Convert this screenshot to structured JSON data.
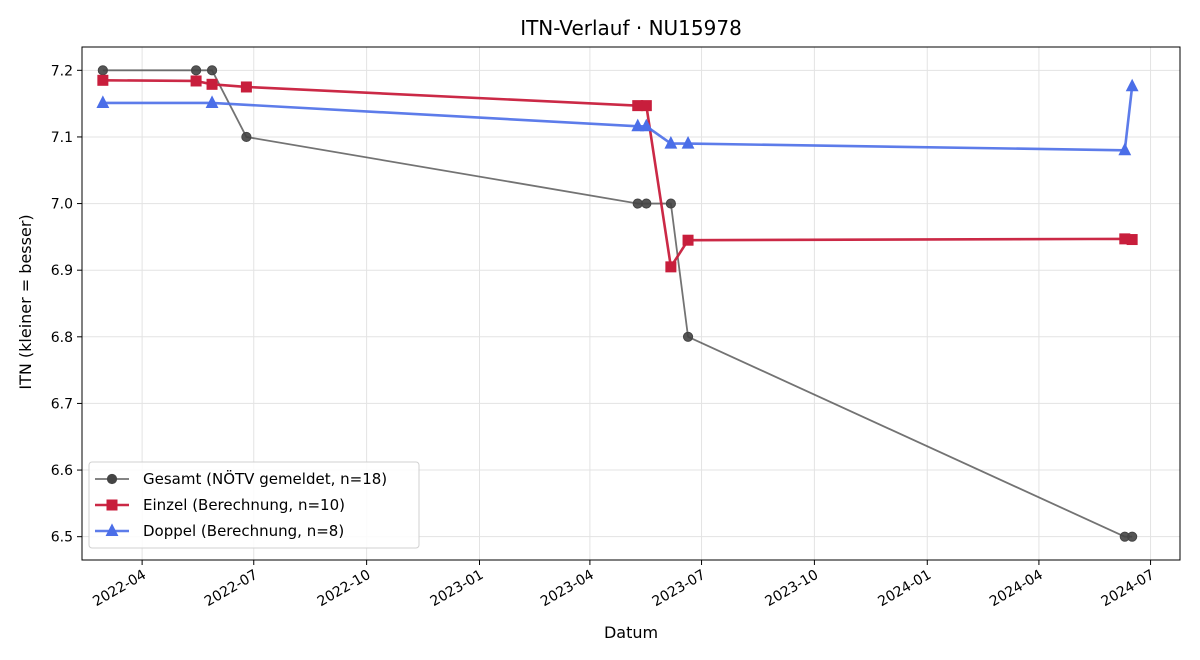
{
  "chart_data": {
    "type": "line",
    "title": "ITN-Verlauf · NU15978",
    "xlabel": "Datum",
    "ylabel": "ITN  (kleiner = besser)",
    "xlim": [
      "2022-02-11",
      "2024-07-25"
    ],
    "ylim": [
      6.465,
      7.235
    ],
    "x_ticks": [
      "2022-04-01",
      "2022-07-01",
      "2022-10-01",
      "2023-01-01",
      "2023-04-01",
      "2023-07-01",
      "2023-10-01",
      "2024-01-01",
      "2024-04-01",
      "2024-07-01"
    ],
    "x_tick_labels": [
      "2022-04",
      "2022-07",
      "2022-10",
      "2023-01",
      "2023-04",
      "2023-07",
      "2023-10",
      "2024-01",
      "2024-04",
      "2024-07"
    ],
    "y_ticks": [
      6.5,
      6.6,
      6.7,
      6.8,
      6.9,
      7.0,
      7.1,
      7.2
    ],
    "y_tick_labels": [
      "6.5",
      "6.6",
      "6.7",
      "6.8",
      "6.9",
      "7.0",
      "7.1",
      "7.2"
    ],
    "grid": true,
    "legend_position": "lower-left",
    "series": [
      {
        "name": "Gesamt (NÖTV gemeldet, n=18)",
        "color": "#444444",
        "marker": "circle",
        "points": [
          {
            "x": "2022-02-28",
            "y": 7.2
          },
          {
            "x": "2022-05-15",
            "y": 7.2
          },
          {
            "x": "2022-05-28",
            "y": 7.2
          },
          {
            "x": "2022-06-25",
            "y": 7.1
          },
          {
            "x": "2023-05-10",
            "y": 7.0
          },
          {
            "x": "2023-05-17",
            "y": 7.0
          },
          {
            "x": "2023-06-06",
            "y": 7.0
          },
          {
            "x": "2023-06-20",
            "y": 6.8
          },
          {
            "x": "2024-06-10",
            "y": 6.5
          },
          {
            "x": "2024-06-16",
            "y": 6.5
          }
        ]
      },
      {
        "name": "Einzel (Berechnung, n=10)",
        "color": "#c81e3c",
        "marker": "square",
        "points": [
          {
            "x": "2022-02-28",
            "y": 7.185
          },
          {
            "x": "2022-05-15",
            "y": 7.184
          },
          {
            "x": "2022-05-28",
            "y": 7.179
          },
          {
            "x": "2022-06-25",
            "y": 7.175
          },
          {
            "x": "2023-05-10",
            "y": 7.147
          },
          {
            "x": "2023-05-17",
            "y": 7.147
          },
          {
            "x": "2023-06-06",
            "y": 6.905
          },
          {
            "x": "2023-06-20",
            "y": 6.945
          },
          {
            "x": "2024-06-10",
            "y": 6.947
          },
          {
            "x": "2024-06-16",
            "y": 6.946
          }
        ]
      },
      {
        "name": "Doppel (Berechnung, n=8)",
        "color": "#4b6ee8",
        "marker": "triangle",
        "points": [
          {
            "x": "2022-02-28",
            "y": 7.151
          },
          {
            "x": "2022-05-28",
            "y": 7.151
          },
          {
            "x": "2023-05-10",
            "y": 7.116
          },
          {
            "x": "2023-05-17",
            "y": 7.116
          },
          {
            "x": "2023-06-06",
            "y": 7.09
          },
          {
            "x": "2023-06-20",
            "y": 7.09
          },
          {
            "x": "2024-06-10",
            "y": 7.08
          },
          {
            "x": "2024-06-16",
            "y": 7.176
          }
        ]
      }
    ]
  }
}
